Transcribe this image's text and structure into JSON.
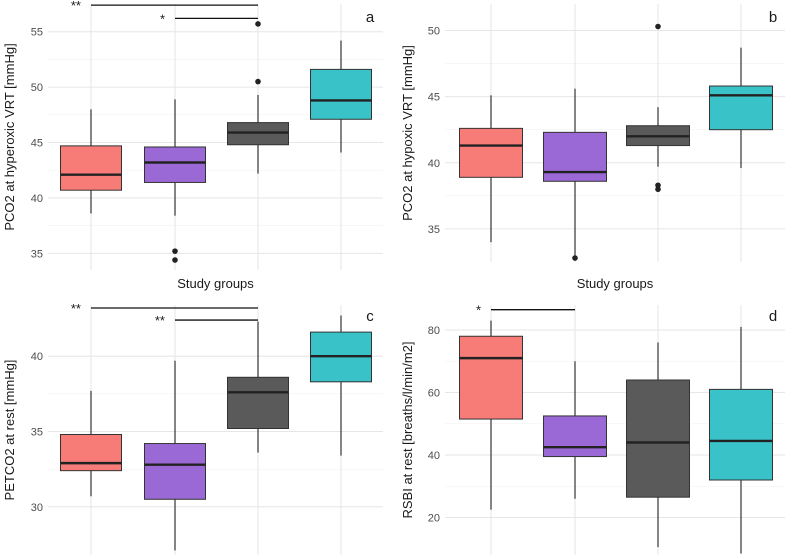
{
  "colors": [
    "#f77b77",
    "#9b69d6",
    "#5a5a5a",
    "#39c3c9"
  ],
  "chart_data": [
    {
      "type": "box",
      "panel_label": "a",
      "xlabel": "Study groups",
      "ylabel": "PCO2 at hyperoxic VRT [mmHg]",
      "ylim": [
        33.5,
        57.5
      ],
      "yticks": [
        35,
        40,
        45,
        50,
        55
      ],
      "boxes": [
        {
          "min": 38.6,
          "q1": 40.7,
          "median": 42.1,
          "q3": 44.7,
          "max": 48.0,
          "outliers": []
        },
        {
          "min": 38.4,
          "q1": 41.4,
          "median": 43.2,
          "q3": 44.6,
          "max": 48.9,
          "outliers": [
            35.2,
            34.4
          ]
        },
        {
          "min": 42.2,
          "q1": 44.8,
          "median": 45.9,
          "q3": 46.8,
          "max": 49.3,
          "outliers": [
            55.7,
            50.5
          ]
        },
        {
          "min": 44.1,
          "q1": 47.1,
          "median": 48.8,
          "q3": 51.6,
          "max": 54.2,
          "outliers": []
        }
      ],
      "significance": [
        {
          "label": "**",
          "from": 1,
          "to": 3,
          "y": 57.4
        },
        {
          "label": "*",
          "from": 2,
          "to": 3,
          "y": 56.2
        }
      ]
    },
    {
      "type": "box",
      "panel_label": "b",
      "xlabel": "Study groups",
      "ylabel": "PCO2 at hypoxic VRT [mmHg]",
      "ylim": [
        32.5,
        52.0
      ],
      "yticks": [
        35,
        40,
        45,
        50
      ],
      "boxes": [
        {
          "min": 34.0,
          "q1": 38.9,
          "median": 41.3,
          "q3": 42.6,
          "max": 45.1,
          "outliers": []
        },
        {
          "min": 32.9,
          "q1": 38.6,
          "median": 39.3,
          "q3": 42.3,
          "max": 45.6,
          "outliers": [
            32.8
          ]
        },
        {
          "min": 39.7,
          "q1": 41.3,
          "median": 42.0,
          "q3": 42.8,
          "max": 44.2,
          "outliers": [
            50.3,
            38.3,
            38.0
          ]
        },
        {
          "min": 39.6,
          "q1": 42.5,
          "median": 45.1,
          "q3": 45.8,
          "max": 48.7,
          "outliers": []
        }
      ],
      "significance": []
    },
    {
      "type": "box",
      "panel_label": "c",
      "xlabel": "",
      "ylabel": "PETCO2 at rest [mmHg]",
      "ylim": [
        26.8,
        43.4
      ],
      "yticks": [
        30,
        35,
        40
      ],
      "boxes": [
        {
          "min": 30.7,
          "q1": 32.4,
          "median": 32.9,
          "q3": 34.8,
          "max": 37.7,
          "outliers": []
        },
        {
          "min": 27.1,
          "q1": 30.5,
          "median": 32.8,
          "q3": 34.2,
          "max": 39.7,
          "outliers": []
        },
        {
          "min": 33.6,
          "q1": 35.2,
          "median": 37.6,
          "q3": 38.6,
          "max": 42.3,
          "outliers": []
        },
        {
          "min": 33.4,
          "q1": 38.3,
          "median": 40.0,
          "q3": 41.6,
          "max": 42.7,
          "outliers": []
        }
      ],
      "significance": [
        {
          "label": "**",
          "from": 1,
          "to": 3,
          "y": 43.2
        },
        {
          "label": "**",
          "from": 2,
          "to": 3,
          "y": 42.4
        }
      ]
    },
    {
      "type": "box",
      "panel_label": "d",
      "xlabel": "",
      "ylabel": "RSBI at rest [breaths/l/min/m2]",
      "ylim": [
        8.0,
        88.0
      ],
      "yticks": [
        20,
        40,
        60,
        80
      ],
      "boxes": [
        {
          "min": 22.5,
          "q1": 51.5,
          "median": 71.0,
          "q3": 78.0,
          "max": 83.0,
          "outliers": []
        },
        {
          "min": 26.0,
          "q1": 39.5,
          "median": 42.5,
          "q3": 52.5,
          "max": 70.0,
          "outliers": []
        },
        {
          "min": 10.5,
          "q1": 26.5,
          "median": 44.0,
          "q3": 64.0,
          "max": 76.0,
          "outliers": []
        },
        {
          "min": 8.5,
          "q1": 32.0,
          "median": 44.5,
          "q3": 61.0,
          "max": 81.0,
          "outliers": []
        }
      ],
      "significance": [
        {
          "label": "*",
          "from": 1,
          "to": 2,
          "y": 86.5
        }
      ]
    }
  ]
}
